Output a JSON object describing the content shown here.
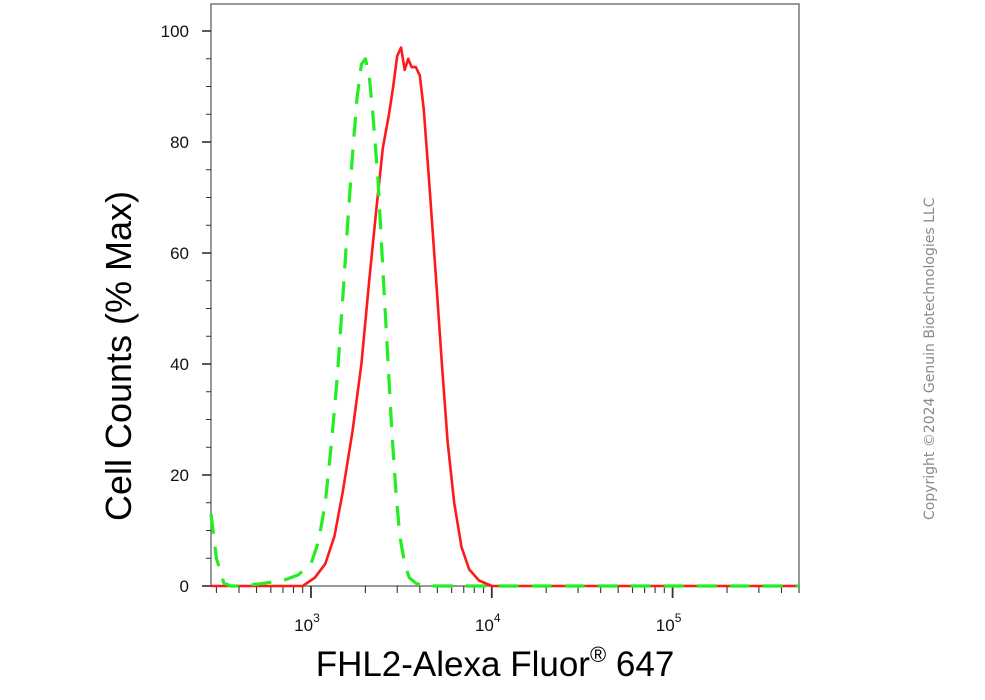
{
  "chart_data": {
    "type": "line",
    "xlabel_main": "FHL2-Alexa Fluor",
    "xlabel_sup": "®",
    "xlabel_tail": " 647",
    "ylabel": "Cell Counts (% Max)",
    "x_scale": "log",
    "xlim": [
      280,
      500000
    ],
    "ylim": [
      0,
      105
    ],
    "x_ticks": [
      {
        "base": "10",
        "exp": "3",
        "value": 1000
      },
      {
        "base": "10",
        "exp": "4",
        "value": 10000
      },
      {
        "base": "10",
        "exp": "5",
        "value": 100000
      }
    ],
    "y_ticks": [
      "0",
      "20",
      "40",
      "60",
      "80",
      "100"
    ],
    "series": [
      {
        "color": "#ff1a1a",
        "style": "solid",
        "points": [
          [
            280,
            0
          ],
          [
            900,
            0
          ],
          [
            1050,
            1.5
          ],
          [
            1200,
            4
          ],
          [
            1350,
            9
          ],
          [
            1500,
            17
          ],
          [
            1700,
            28
          ],
          [
            1900,
            40
          ],
          [
            2100,
            55
          ],
          [
            2300,
            68
          ],
          [
            2500,
            79
          ],
          [
            2700,
            85
          ],
          [
            2850,
            90
          ],
          [
            3000,
            95.5
          ],
          [
            3150,
            97
          ],
          [
            3300,
            93
          ],
          [
            3450,
            95
          ],
          [
            3600,
            93.5
          ],
          [
            3800,
            93.5
          ],
          [
            4000,
            92
          ],
          [
            4200,
            86
          ],
          [
            4500,
            73
          ],
          [
            4900,
            56
          ],
          [
            5300,
            40
          ],
          [
            5700,
            26
          ],
          [
            6200,
            15
          ],
          [
            6800,
            7
          ],
          [
            7500,
            3
          ],
          [
            8500,
            1
          ],
          [
            10000,
            0
          ],
          [
            500000,
            0
          ]
        ]
      },
      {
        "color": "#22ee22",
        "style": "dashed",
        "points": [
          [
            280,
            13
          ],
          [
            300,
            5
          ],
          [
            330,
            0.5
          ],
          [
            360,
            0
          ],
          [
            420,
            0
          ],
          [
            550,
            0.5
          ],
          [
            700,
            1
          ],
          [
            850,
            2
          ],
          [
            1000,
            4
          ],
          [
            1100,
            8
          ],
          [
            1200,
            15
          ],
          [
            1300,
            26
          ],
          [
            1400,
            38
          ],
          [
            1500,
            52
          ],
          [
            1600,
            66
          ],
          [
            1700,
            78
          ],
          [
            1800,
            88
          ],
          [
            1900,
            94
          ],
          [
            2000,
            95
          ],
          [
            2100,
            92
          ],
          [
            2200,
            85
          ],
          [
            2350,
            73
          ],
          [
            2500,
            57
          ],
          [
            2650,
            42
          ],
          [
            2800,
            28
          ],
          [
            2950,
            17
          ],
          [
            3100,
            9
          ],
          [
            3300,
            4
          ],
          [
            3500,
            1.5
          ],
          [
            3800,
            0.5
          ],
          [
            4200,
            0
          ],
          [
            500000,
            0
          ]
        ]
      }
    ]
  },
  "copyright": "Copyright ©2024 Genuin Biotechnologies LLC"
}
